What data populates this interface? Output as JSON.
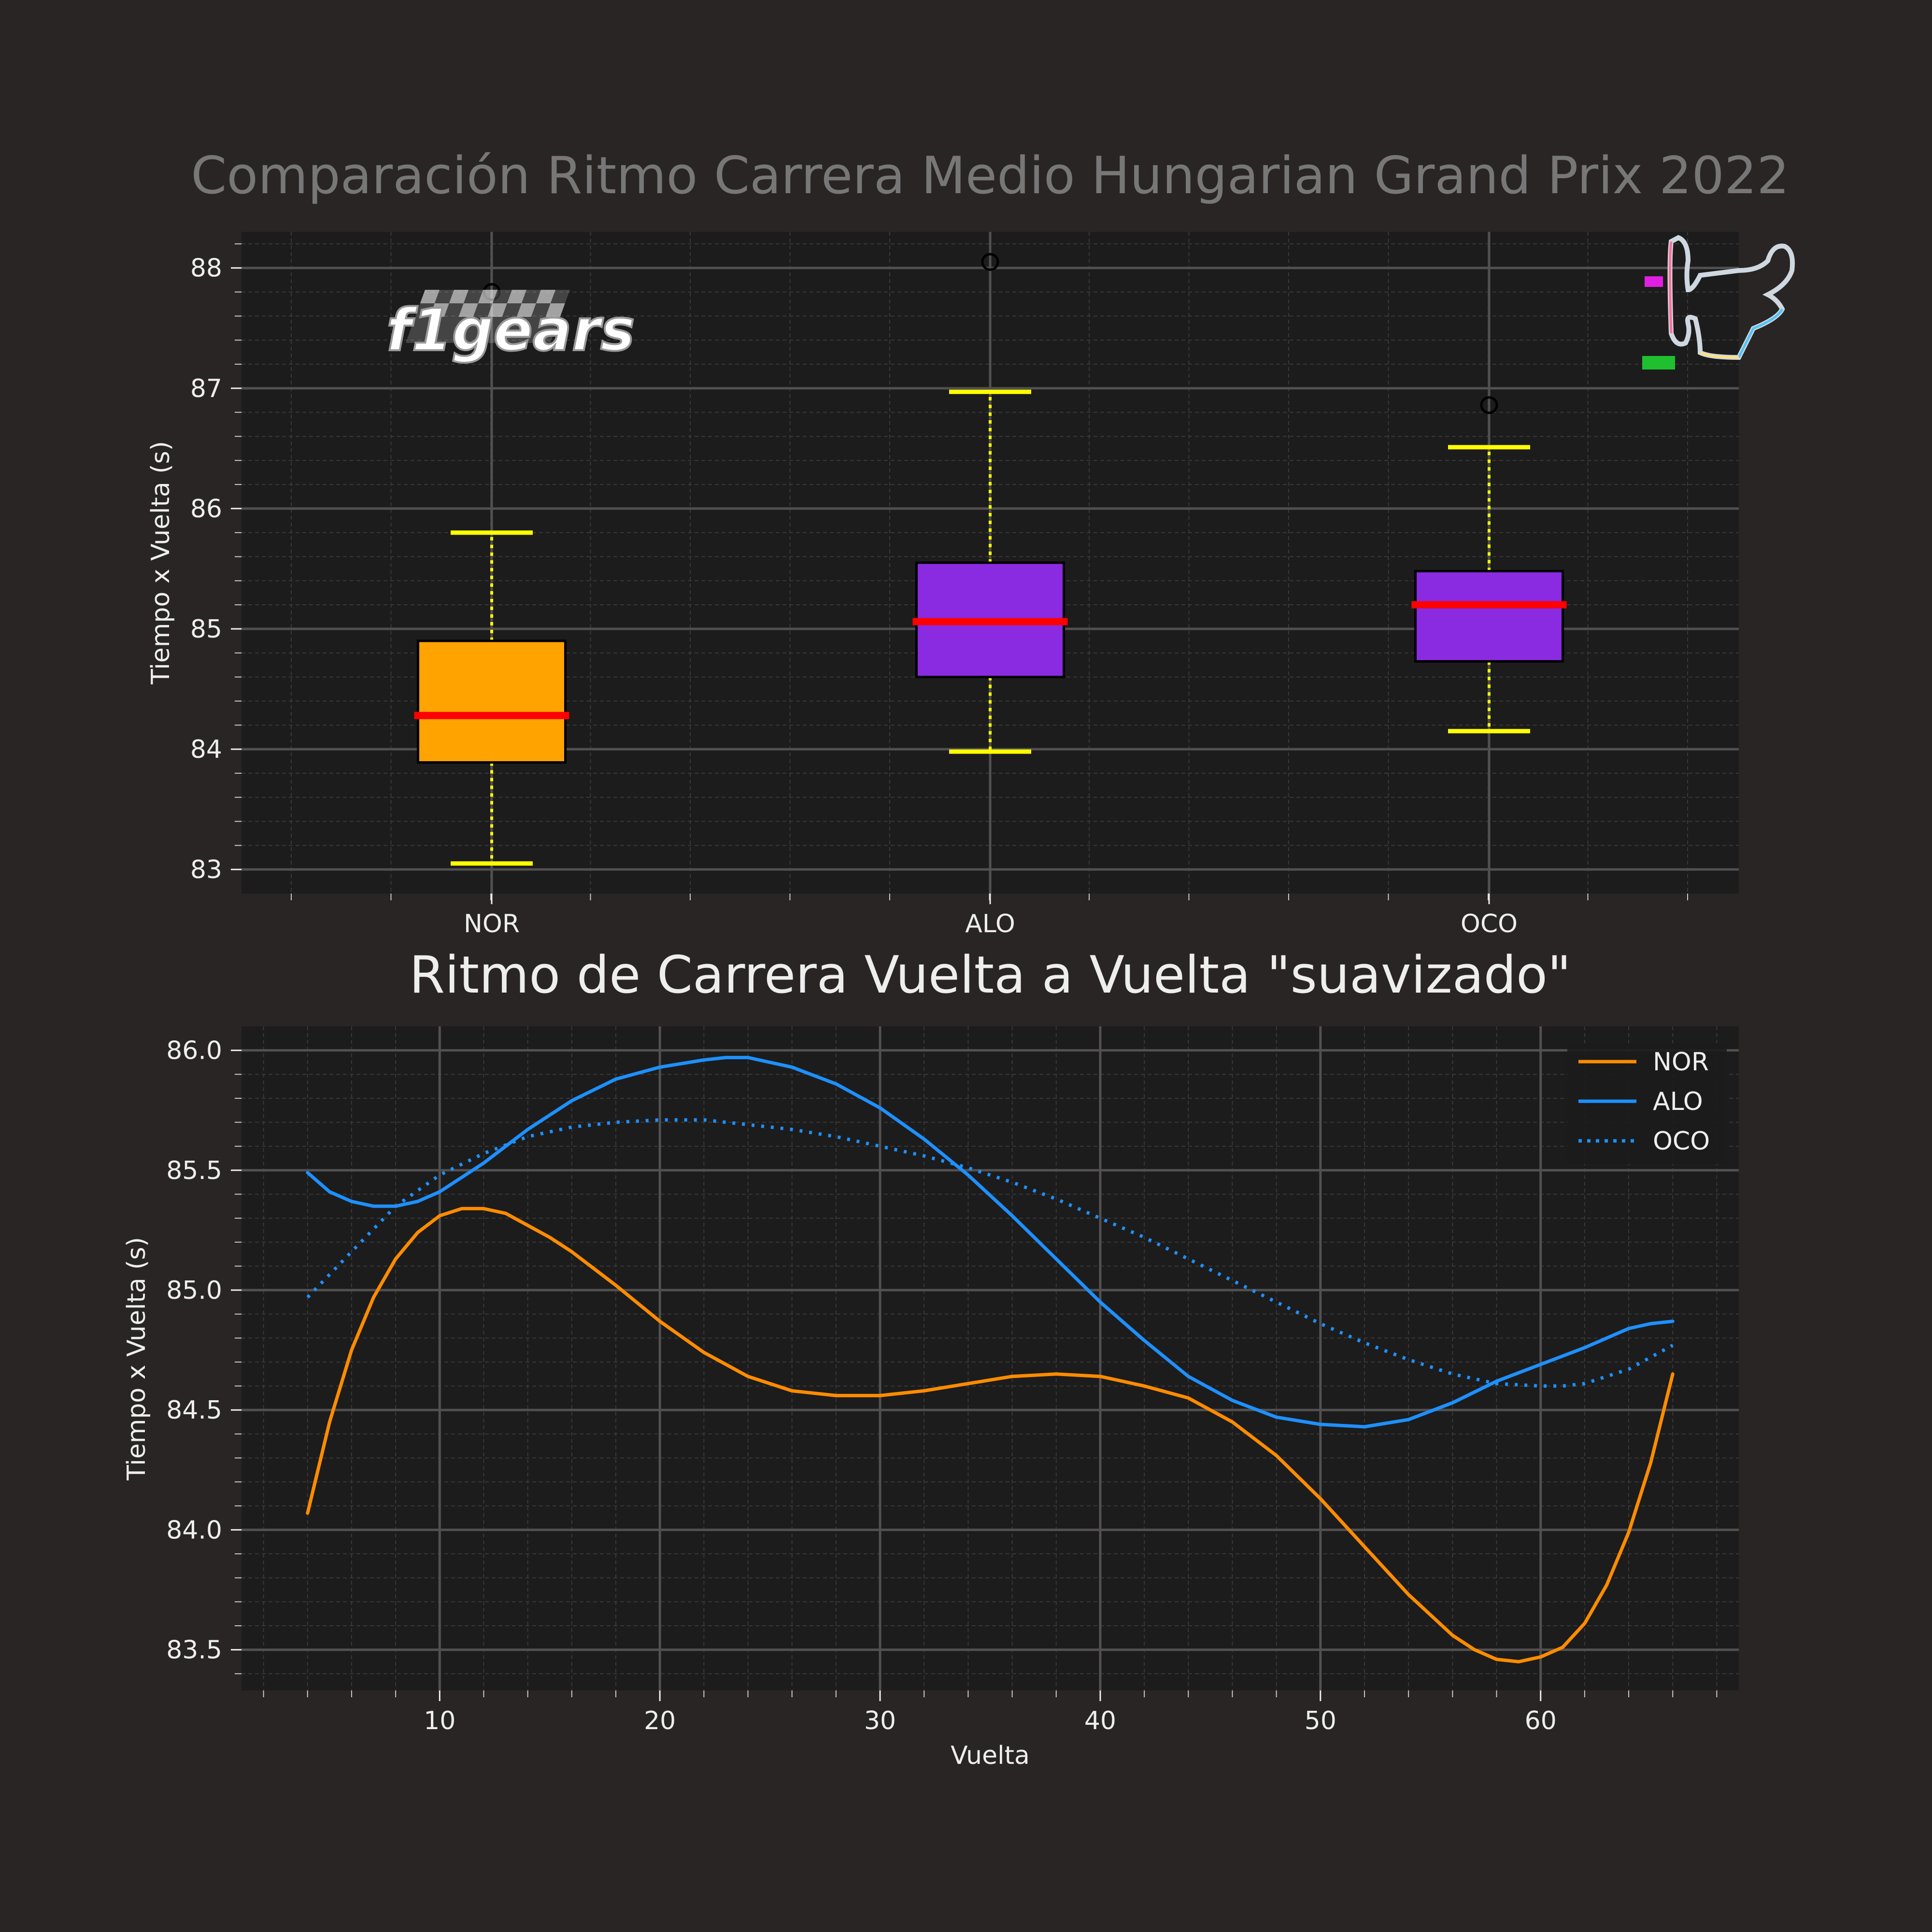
{
  "colors": {
    "figure_bg": "#282524",
    "axes_bg": "#1c1c1c",
    "grid_major": "#525050",
    "grid_minor": "#3a3838",
    "text": "#eeeeee",
    "title_top": "#777777",
    "nor": "#ffa300",
    "alo": "#8a2be2",
    "median": "#ff0000",
    "whisker": "#ffff00",
    "line_nor": "#ff8c00",
    "line_alo": "#1e90ff",
    "line_oco": "#1e90ff"
  },
  "logo": {
    "name": "f1gears-logo",
    "text": "f1gears"
  },
  "chart_data": [
    {
      "type": "box",
      "title": "Comparación Ritmo Carrera Medio Hungarian Grand Prix 2022",
      "ylabel": "Tiempo x Vuelta (s)",
      "xlabel": "",
      "ylim": [
        82.8,
        88.3
      ],
      "yticks": [
        83,
        84,
        85,
        86,
        87,
        88
      ],
      "grid": true,
      "categories": [
        "NOR",
        "ALO",
        "OCO"
      ],
      "boxes": [
        {
          "name": "NOR",
          "whislo": 83.05,
          "q1": 83.89,
          "med": 84.28,
          "q3": 84.9,
          "whishi": 85.8,
          "fliers": [
            87.8
          ],
          "color": "#ffa300"
        },
        {
          "name": "ALO",
          "whislo": 83.98,
          "q1": 84.6,
          "med": 85.06,
          "q3": 85.55,
          "whishi": 86.97,
          "fliers": [
            88.05
          ],
          "color": "#8a2be2"
        },
        {
          "name": "OCO",
          "whislo": 84.15,
          "q1": 84.73,
          "med": 85.2,
          "q3": 85.48,
          "whishi": 86.51,
          "fliers": [
            86.86
          ],
          "color": "#8a2be2"
        }
      ]
    },
    {
      "type": "line",
      "title": "Ritmo de Carrera Vuelta a Vuelta \"suavizado\"",
      "xlabel": "Vuelta",
      "ylabel": "Tiempo x Vuelta (s)",
      "xlim": [
        1,
        69
      ],
      "ylim": [
        83.33,
        86.1
      ],
      "xticks": [
        10,
        20,
        30,
        40,
        50,
        60
      ],
      "yticks": [
        83.5,
        84.0,
        84.5,
        85.0,
        85.5,
        86.0
      ],
      "ytick_labels": [
        "83.5",
        "84.0",
        "84.5",
        "85.0",
        "85.5",
        "86.0"
      ],
      "grid": true,
      "legend": "top-right",
      "series": [
        {
          "name": "NOR",
          "style": "solid",
          "color": "#ff8c00",
          "x": [
            4,
            5,
            6,
            7,
            8,
            9,
            10,
            11,
            12,
            13,
            14,
            15,
            16,
            18,
            20,
            22,
            24,
            26,
            28,
            30,
            32,
            34,
            36,
            38,
            40,
            42,
            44,
            46,
            48,
            50,
            52,
            54,
            56,
            57,
            58,
            59,
            60,
            61,
            62,
            63,
            64,
            65,
            66
          ],
          "y": [
            84.07,
            84.45,
            84.75,
            84.97,
            85.13,
            85.24,
            85.31,
            85.34,
            85.34,
            85.32,
            85.27,
            85.22,
            85.16,
            85.02,
            84.87,
            84.74,
            84.64,
            84.58,
            84.56,
            84.56,
            84.58,
            84.61,
            84.64,
            84.65,
            84.64,
            84.6,
            84.55,
            84.45,
            84.31,
            84.13,
            83.93,
            83.73,
            83.56,
            83.5,
            83.46,
            83.45,
            83.47,
            83.51,
            83.61,
            83.77,
            83.99,
            84.28,
            84.65
          ]
        },
        {
          "name": "ALO",
          "style": "solid",
          "color": "#1e90ff",
          "x": [
            4,
            5,
            6,
            7,
            8,
            9,
            10,
            12,
            14,
            16,
            18,
            20,
            22,
            23,
            24,
            26,
            28,
            30,
            32,
            34,
            36,
            38,
            40,
            42,
            44,
            46,
            48,
            50,
            52,
            54,
            56,
            58,
            60,
            62,
            64,
            65,
            66
          ],
          "y": [
            85.49,
            85.41,
            85.37,
            85.35,
            85.35,
            85.37,
            85.41,
            85.53,
            85.67,
            85.79,
            85.88,
            85.93,
            85.96,
            85.97,
            85.97,
            85.93,
            85.86,
            85.76,
            85.63,
            85.48,
            85.31,
            85.13,
            84.95,
            84.79,
            84.64,
            84.54,
            84.47,
            84.44,
            84.43,
            84.46,
            84.53,
            84.62,
            84.69,
            84.76,
            84.84,
            84.86,
            84.87
          ]
        },
        {
          "name": "OCO",
          "style": "dotted",
          "color": "#1e90ff",
          "x": [
            4,
            6,
            8,
            10,
            12,
            14,
            16,
            18,
            20,
            22,
            24,
            26,
            28,
            30,
            32,
            34,
            36,
            38,
            40,
            42,
            44,
            46,
            48,
            50,
            52,
            54,
            56,
            58,
            60,
            61,
            62,
            64,
            66
          ],
          "y": [
            84.97,
            85.16,
            85.35,
            85.48,
            85.57,
            85.64,
            85.68,
            85.7,
            85.71,
            85.71,
            85.69,
            85.67,
            85.64,
            85.6,
            85.56,
            85.51,
            85.45,
            85.38,
            85.3,
            85.22,
            85.13,
            85.04,
            84.95,
            84.86,
            84.78,
            84.71,
            84.65,
            84.61,
            84.6,
            84.6,
            84.61,
            84.67,
            84.77
          ]
        }
      ]
    }
  ]
}
